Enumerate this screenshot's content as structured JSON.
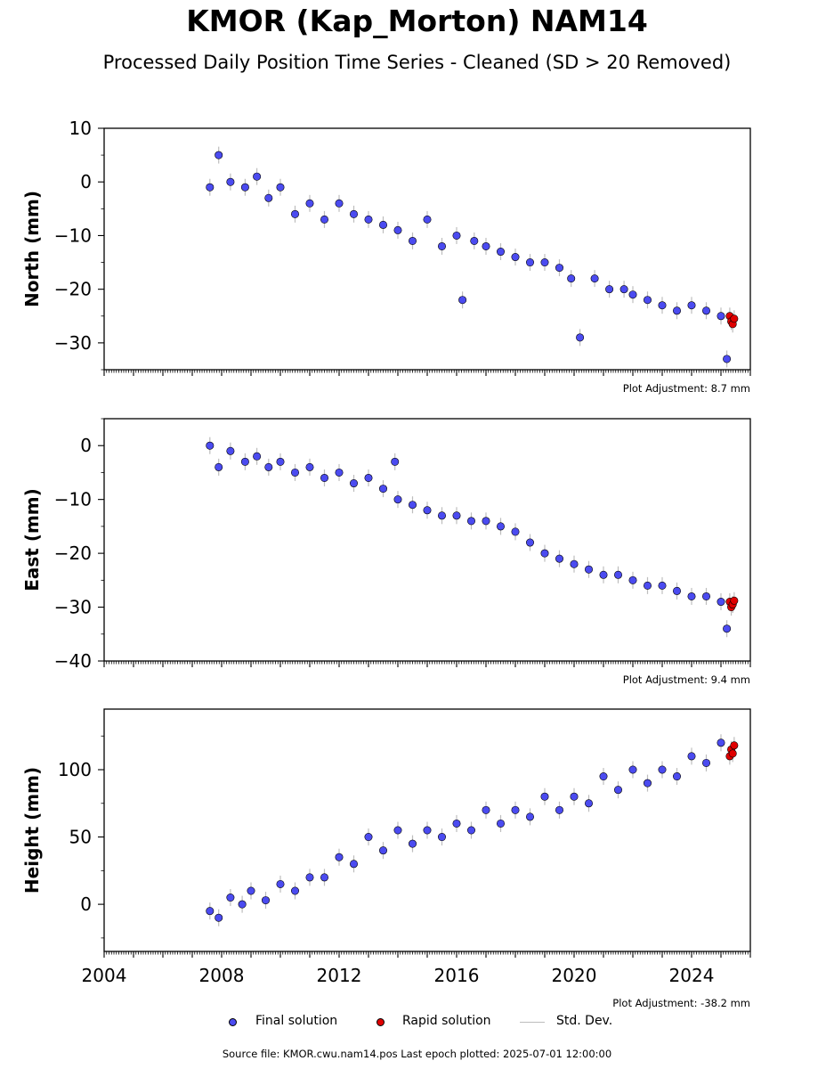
{
  "title": "KMOR (Kap_Morton) NAM14",
  "subtitle": "Processed Daily Position Time Series - Cleaned (SD > 20 Removed)",
  "colors": {
    "final": "#4b4bf0",
    "rapid": "#e00000",
    "stddev": "#bdbdbd"
  },
  "legend": {
    "final": "Final solution",
    "rapid": "Rapid solution",
    "stddev": "Std. Dev."
  },
  "footer": "Source file: KMOR.cwu.nam14.pos  Last epoch plotted: 2025-07-01 12:00:00",
  "chart_data": [
    {
      "type": "scatter",
      "ylabel": "North (mm)",
      "xlim": [
        2004,
        2026
      ],
      "ylim": [
        -35,
        10
      ],
      "yticks": [
        10,
        0,
        -10,
        -20,
        -30
      ],
      "adjustment": "Plot Adjustment: 8.7 mm",
      "series": [
        {
          "name": "Final solution",
          "x": [
            2007.6,
            2007.9,
            2008.3,
            2008.8,
            2009.2,
            2009.6,
            2010.0,
            2010.5,
            2011.0,
            2011.5,
            2012.0,
            2012.5,
            2013.0,
            2013.5,
            2014.0,
            2014.5,
            2015.0,
            2015.5,
            2016.0,
            2016.2,
            2016.6,
            2017.0,
            2017.5,
            2018.0,
            2018.5,
            2019.0,
            2019.5,
            2019.9,
            2020.2,
            2020.7,
            2021.2,
            2021.7,
            2022.0,
            2022.5,
            2023.0,
            2023.5,
            2024.0,
            2024.5,
            2025.0,
            2025.2
          ],
          "y": [
            -1,
            5,
            0,
            -1,
            1,
            -3,
            -1,
            -6,
            -4,
            -7,
            -4,
            -6,
            -7,
            -8,
            -9,
            -11,
            -7,
            -12,
            -10,
            -22,
            -11,
            -12,
            -13,
            -14,
            -15,
            -15,
            -16,
            -18,
            -29,
            -18,
            -20,
            -20,
            -21,
            -22,
            -23,
            -24,
            -23,
            -24,
            -25,
            -33
          ]
        },
        {
          "name": "Rapid solution",
          "x": [
            2025.3,
            2025.35,
            2025.4,
            2025.45
          ],
          "y": [
            -25,
            -26,
            -26.5,
            -25.5
          ]
        }
      ]
    },
    {
      "type": "scatter",
      "ylabel": "East (mm)",
      "xlim": [
        2004,
        2026
      ],
      "ylim": [
        -40,
        5
      ],
      "yticks": [
        0,
        -10,
        -20,
        -30,
        -40
      ],
      "adjustment": "Plot Adjustment: 9.4 mm",
      "series": [
        {
          "name": "Final solution",
          "x": [
            2007.6,
            2007.9,
            2008.3,
            2008.8,
            2009.2,
            2009.6,
            2010.0,
            2010.5,
            2011.0,
            2011.5,
            2012.0,
            2012.5,
            2013.0,
            2013.5,
            2013.9,
            2014.0,
            2014.5,
            2015.0,
            2015.5,
            2016.0,
            2016.5,
            2017.0,
            2017.5,
            2018.0,
            2018.5,
            2019.0,
            2019.5,
            2020.0,
            2020.5,
            2021.0,
            2021.5,
            2022.0,
            2022.5,
            2023.0,
            2023.5,
            2024.0,
            2024.5,
            2025.0,
            2025.2
          ],
          "y": [
            0,
            -4,
            -1,
            -3,
            -2,
            -4,
            -3,
            -5,
            -4,
            -6,
            -5,
            -7,
            -6,
            -8,
            -3,
            -10,
            -11,
            -12,
            -13,
            -13,
            -14,
            -14,
            -15,
            -16,
            -18,
            -20,
            -21,
            -22,
            -23,
            -24,
            -24,
            -25,
            -26,
            -26,
            -27,
            -28,
            -28,
            -29,
            -34
          ]
        },
        {
          "name": "Rapid solution",
          "x": [
            2025.3,
            2025.35,
            2025.4,
            2025.45
          ],
          "y": [
            -29,
            -30,
            -29.5,
            -28.8
          ]
        }
      ]
    },
    {
      "type": "scatter",
      "ylabel": "Height (mm)",
      "xlim": [
        2004,
        2026
      ],
      "ylim": [
        -35,
        145
      ],
      "yticks": [
        100,
        50,
        0
      ],
      "xticks": [
        2004,
        2008,
        2012,
        2016,
        2020,
        2024
      ],
      "adjustment": "Plot Adjustment: -38.2 mm",
      "series": [
        {
          "name": "Final solution",
          "x": [
            2007.6,
            2007.9,
            2008.3,
            2008.7,
            2009.0,
            2009.5,
            2010.0,
            2010.5,
            2011.0,
            2011.5,
            2012.0,
            2012.5,
            2013.0,
            2013.5,
            2014.0,
            2014.5,
            2015.0,
            2015.5,
            2016.0,
            2016.5,
            2017.0,
            2017.5,
            2018.0,
            2018.5,
            2019.0,
            2019.5,
            2020.0,
            2020.5,
            2021.0,
            2021.5,
            2022.0,
            2022.5,
            2023.0,
            2023.5,
            2024.0,
            2024.5,
            2025.0
          ],
          "y": [
            -5,
            -10,
            5,
            0,
            10,
            3,
            15,
            10,
            20,
            20,
            35,
            30,
            50,
            40,
            55,
            45,
            55,
            50,
            60,
            55,
            70,
            60,
            70,
            65,
            80,
            70,
            80,
            75,
            95,
            85,
            100,
            90,
            100,
            95,
            110,
            105,
            120
          ]
        },
        {
          "name": "Rapid solution",
          "x": [
            2025.3,
            2025.35,
            2025.4,
            2025.45
          ],
          "y": [
            110,
            115,
            112,
            118
          ]
        }
      ]
    }
  ]
}
